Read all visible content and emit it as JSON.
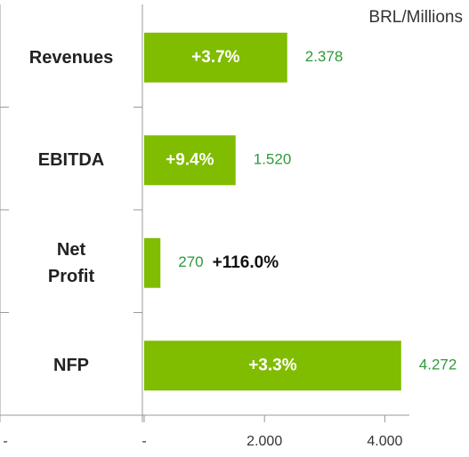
{
  "chart_data": {
    "type": "bar",
    "orientation": "horizontal",
    "unit_label": "BRL/Millions",
    "categories": [
      "Revenues",
      "EBITDA",
      "Net\nProfit",
      "NFP"
    ],
    "values": [
      2378,
      1520,
      270,
      4272
    ],
    "value_labels": [
      "2.378",
      "1.520",
      "270",
      "4.272"
    ],
    "annotations": [
      "+3.7%",
      "+9.4%",
      "+116.0%",
      "+3.3%"
    ],
    "color": "#80bc00",
    "label_color": "#2e9a3a",
    "xlim": [
      0,
      5000
    ],
    "xticks": [
      {
        "value": 0,
        "label": "-"
      },
      {
        "value": 2000,
        "label": "2.000"
      },
      {
        "value": 4000,
        "label": "4.000"
      }
    ],
    "left_axis_label": "-"
  }
}
